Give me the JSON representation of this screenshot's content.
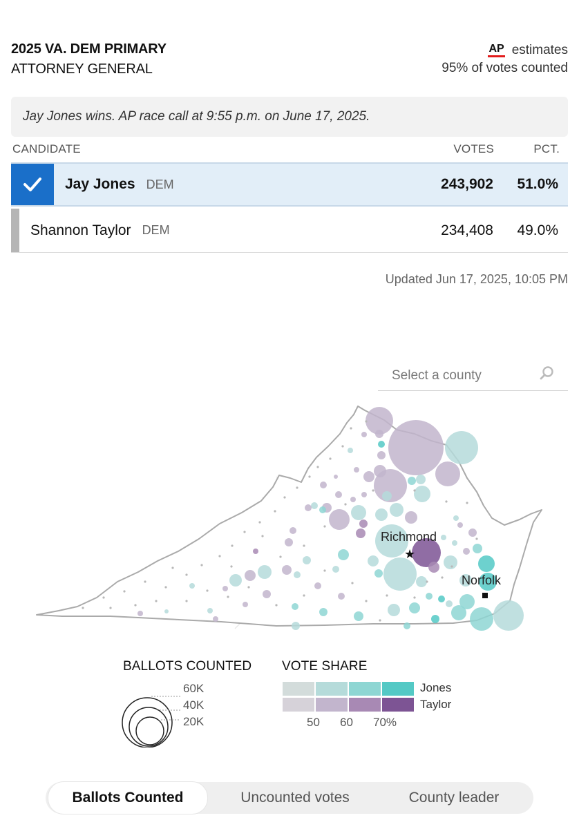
{
  "header": {
    "title": "2025 VA. DEM PRIMARY",
    "subtitle": "ATTORNEY GENERAL",
    "ap_logo": "AP",
    "ap_estimates": "estimates",
    "counted": "95% of votes counted"
  },
  "race_call": "Jay Jones wins. AP race call at 9:55 p.m. on June 17, 2025.",
  "table": {
    "headers": {
      "candidate": "CANDIDATE",
      "votes": "VOTES",
      "pct": "PCT."
    },
    "rows": [
      {
        "name": "Jay Jones",
        "party": "DEM",
        "votes": "243,902",
        "pct": "51.0%",
        "winner": true
      },
      {
        "name": "Shannon Taylor",
        "party": "DEM",
        "votes": "234,408",
        "pct": "49.0%",
        "winner": false
      }
    ]
  },
  "updated": "Updated  Jun 17, 2025, 10:05 PM",
  "search": {
    "placeholder": "Select a county",
    "icon": "search-icon"
  },
  "map": {
    "cities": [
      {
        "name": "Richmond",
        "marker": "star"
      },
      {
        "name": "Norfolk",
        "marker": "square"
      }
    ]
  },
  "legend": {
    "ballots_title": "BALLOTS COUNTED",
    "ballots_sizes": [
      "60K",
      "40K",
      "20K"
    ],
    "share_title": "VOTE SHARE",
    "share_ticks": [
      "50",
      "60",
      "70%"
    ],
    "candidates": [
      {
        "name": "Jones",
        "colors": [
          "#d3dcdb",
          "#b5dbda",
          "#8ed6d3",
          "#54c9c5"
        ]
      },
      {
        "name": "Taylor",
        "colors": [
          "#d6d2d9",
          "#c2b5cd",
          "#a889b4",
          "#7d5494"
        ]
      }
    ]
  },
  "tabs": [
    {
      "label": "Ballots Counted",
      "active": true
    },
    {
      "label": "Uncounted votes",
      "active": false
    },
    {
      "label": "County leader",
      "active": false
    }
  ]
}
